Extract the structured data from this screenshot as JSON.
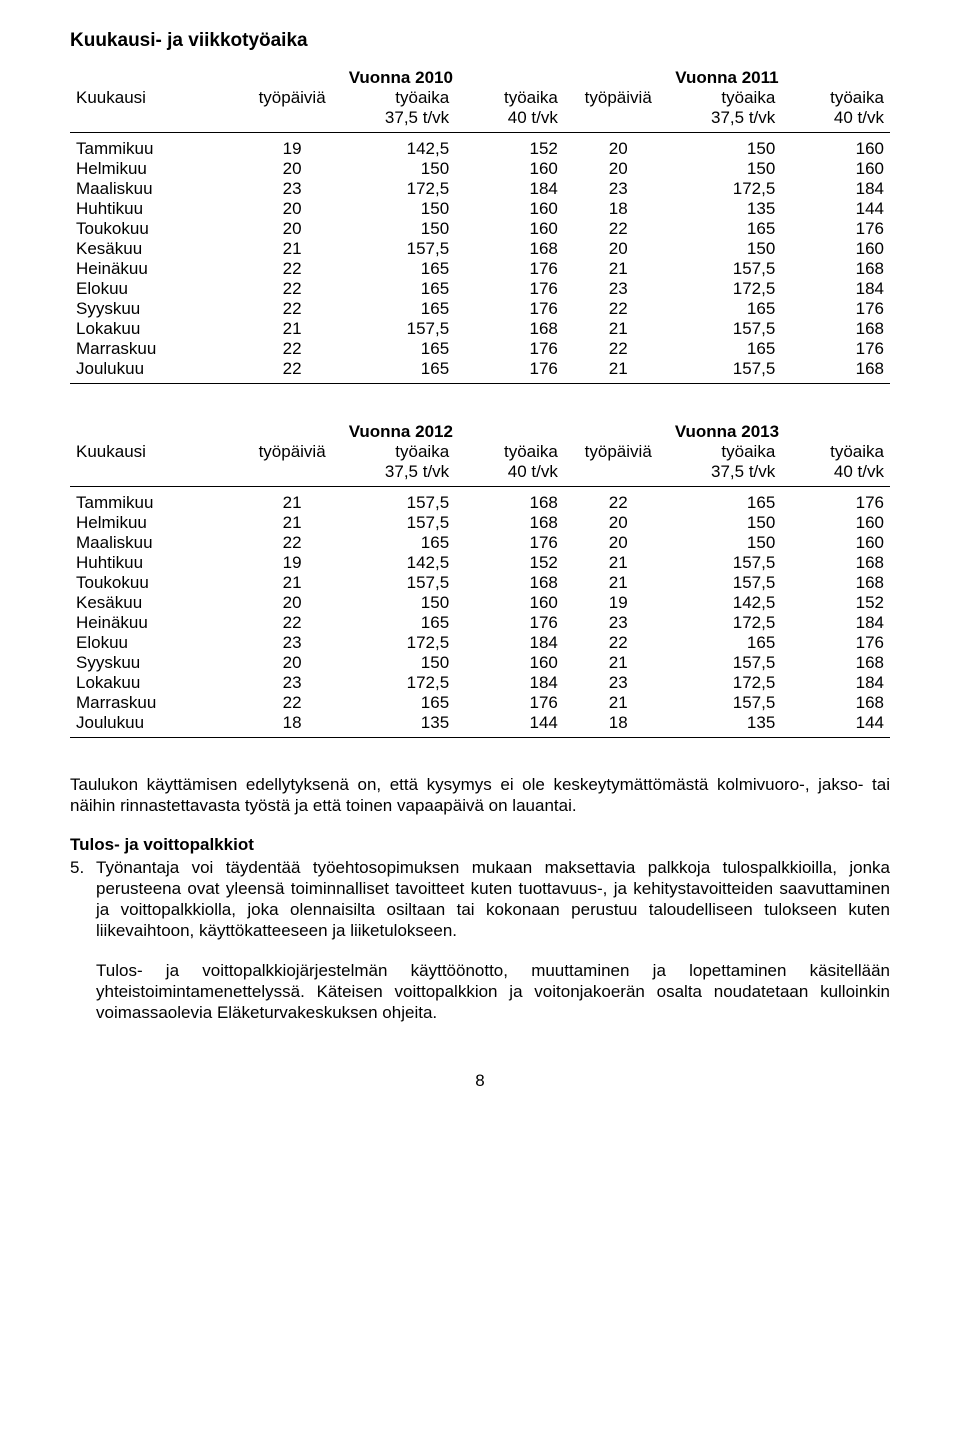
{
  "title": "Kuukausi- ja viikkotyöaika",
  "labels": {
    "month": "Kuukausi",
    "workdays": "työpäiviä",
    "hours": "työaika",
    "rate1": "37,5 t/vk",
    "rate2": "40 t/vk"
  },
  "table1": {
    "yearA": "Vuonna 2010",
    "yearB": "Vuonna 2011",
    "rows": [
      {
        "m": "Tammikuu",
        "a": [
          19,
          "142,5",
          152
        ],
        "b": [
          20,
          "150",
          160
        ]
      },
      {
        "m": "Helmikuu",
        "a": [
          20,
          "150",
          160
        ],
        "b": [
          20,
          "150",
          160
        ]
      },
      {
        "m": "Maaliskuu",
        "a": [
          23,
          "172,5",
          184
        ],
        "b": [
          23,
          "172,5",
          184
        ]
      },
      {
        "m": "Huhtikuu",
        "a": [
          20,
          "150",
          160
        ],
        "b": [
          18,
          "135",
          144
        ]
      },
      {
        "m": "Toukokuu",
        "a": [
          20,
          "150",
          160
        ],
        "b": [
          22,
          "165",
          176
        ]
      },
      {
        "m": "Kesäkuu",
        "a": [
          21,
          "157,5",
          168
        ],
        "b": [
          20,
          "150",
          160
        ]
      },
      {
        "m": "Heinäkuu",
        "a": [
          22,
          "165",
          176
        ],
        "b": [
          21,
          "157,5",
          168
        ]
      },
      {
        "m": "Elokuu",
        "a": [
          22,
          "165",
          176
        ],
        "b": [
          23,
          "172,5",
          184
        ]
      },
      {
        "m": "Syyskuu",
        "a": [
          22,
          "165",
          176
        ],
        "b": [
          22,
          "165",
          176
        ]
      },
      {
        "m": "Lokakuu",
        "a": [
          21,
          "157,5",
          168
        ],
        "b": [
          21,
          "157,5",
          168
        ]
      },
      {
        "m": "Marraskuu",
        "a": [
          22,
          "165",
          176
        ],
        "b": [
          22,
          "165",
          176
        ]
      },
      {
        "m": "Joulukuu",
        "a": [
          22,
          "165",
          176
        ],
        "b": [
          21,
          "157,5",
          168
        ]
      }
    ]
  },
  "table2": {
    "yearA": "Vuonna 2012",
    "yearB": "Vuonna 2013",
    "rows": [
      {
        "m": "Tammikuu",
        "a": [
          21,
          "157,5",
          168
        ],
        "b": [
          22,
          "165",
          176
        ]
      },
      {
        "m": "Helmikuu",
        "a": [
          21,
          "157,5",
          168
        ],
        "b": [
          20,
          "150",
          160
        ]
      },
      {
        "m": "Maaliskuu",
        "a": [
          22,
          "165",
          176
        ],
        "b": [
          20,
          "150",
          160
        ]
      },
      {
        "m": "Huhtikuu",
        "a": [
          19,
          "142,5",
          152
        ],
        "b": [
          21,
          "157,5",
          168
        ]
      },
      {
        "m": "Toukokuu",
        "a": [
          21,
          "157,5",
          168
        ],
        "b": [
          21,
          "157,5",
          168
        ]
      },
      {
        "m": "Kesäkuu",
        "a": [
          20,
          "150",
          160
        ],
        "b": [
          19,
          "142,5",
          152
        ]
      },
      {
        "m": "Heinäkuu",
        "a": [
          22,
          "165",
          176
        ],
        "b": [
          23,
          "172,5",
          184
        ]
      },
      {
        "m": "Elokuu",
        "a": [
          23,
          "172,5",
          184
        ],
        "b": [
          22,
          "165",
          176
        ]
      },
      {
        "m": "Syyskuu",
        "a": [
          20,
          "150",
          160
        ],
        "b": [
          21,
          "157,5",
          168
        ]
      },
      {
        "m": "Lokakuu",
        "a": [
          23,
          "172,5",
          184
        ],
        "b": [
          23,
          "172,5",
          184
        ]
      },
      {
        "m": "Marraskuu",
        "a": [
          22,
          "165",
          176
        ],
        "b": [
          21,
          "157,5",
          168
        ]
      },
      {
        "m": "Joulukuu",
        "a": [
          18,
          "135",
          144
        ],
        "b": [
          18,
          "135",
          144
        ]
      }
    ]
  },
  "para1": "Taulukon käyttämisen edellytyksenä on, että kysymys ei ole keskeytymättömästä kolmi­vuoro-, jakso- tai näihin rinnastettavasta työstä ja että toinen vapaapäivä on lauantai.",
  "subhead": "Tulos- ja voittopalkkiot",
  "item5_num": "5.",
  "item5_text": "Työnantaja voi täydentää työehtosopimuksen mukaan maksettavia palkkoja tulospalkkioil­la, jonka perusteena ovat yleensä toiminnalliset tavoitteet kuten tuottavuus-, ja kehitysta­voitteiden saavuttaminen ja voittopalkkiolla, joka olennaisilta osiltaan tai kokonaan perus­tuu taloudelliseen tulokseen kuten liikevaihtoon, käyttökatteeseen ja liiketulokseen.",
  "para2": "Tulos- ja voittopalkkiojärjestelmän käyttöönotto, muuttaminen ja lopettaminen käsitellään yhteistoimintamenettelyssä. Käteisen voittopalkkion ja voitonjakoerän osalta noudatetaan kulloinkin voimassaolevia Eläketurvakeskuksen ohjeita.",
  "pagenum": "8"
}
